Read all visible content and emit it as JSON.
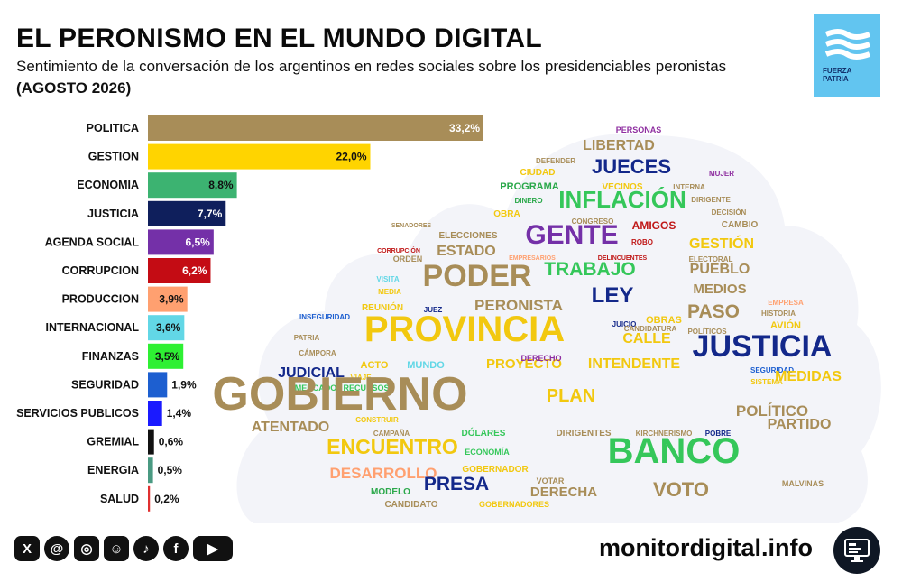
{
  "header": {
    "title": "EL PERONISMO EN EL MUNDO DIGITAL",
    "subtitle": "Sentimiento de la conversación de los argentinos en redes sociales sobre los presidenciables peronistas",
    "period": "(AGOSTO 2026)"
  },
  "logo": {
    "line1": "FUERZA",
    "line2": "PATRIA",
    "color": "#62c5f0"
  },
  "chart_data": {
    "type": "bar",
    "orientation": "horizontal",
    "categories": [
      "POLITICA",
      "GESTION",
      "ECONOMIA",
      "JUSTICIA",
      "AGENDA SOCIAL",
      "CORRUPCION",
      "PRODUCCION",
      "INTERNACIONAL",
      "FINANZAS",
      "SEGURIDAD",
      "SERVICIOS PUBLICOS",
      "GREMIAL",
      "ENERGIA",
      "SALUD"
    ],
    "values": [
      33.2,
      22.0,
      8.8,
      7.7,
      6.5,
      6.2,
      3.9,
      3.6,
      3.5,
      1.9,
      1.4,
      0.6,
      0.5,
      0.2
    ],
    "labels": [
      "33,2%",
      "22,0%",
      "8,8%",
      "7,7%",
      "6,5%",
      "6,2%",
      "3,9%",
      "3,6%",
      "3,5%",
      "1,9%",
      "1,4%",
      "0,6%",
      "0,5%",
      "0,2%"
    ],
    "colors": [
      "#a88d58",
      "#ffd400",
      "#3cb371",
      "#0f1f5c",
      "#7430a8",
      "#c40c14",
      "#ffa070",
      "#62d7e6",
      "#2ef033",
      "#1d5fd0",
      "#1a1aff",
      "#111111",
      "#4a9a82",
      "#e03030"
    ],
    "xlim": [
      0,
      33.2
    ],
    "grid": false,
    "legend": "none"
  },
  "wordcloud": {
    "background": "#f3f4f9",
    "words": [
      {
        "text": "PERSONAS",
        "color": "#8e2ea0",
        "weight": 1
      },
      {
        "text": "LIBERTAD",
        "color": "#a88d58",
        "weight": 3
      },
      {
        "text": "DEFENDER",
        "color": "#a88d58",
        "weight": 0
      },
      {
        "text": "JUECES",
        "color": "#13288a",
        "weight": 4
      },
      {
        "text": "CIUDAD",
        "color": "#f2c80f",
        "weight": 1
      },
      {
        "text": "MUJER",
        "color": "#8e2ea0",
        "weight": 0
      },
      {
        "text": "PROGRAMA",
        "color": "#2aa84a",
        "weight": 1
      },
      {
        "text": "VECINOS",
        "color": "#f2c80f",
        "weight": 1
      },
      {
        "text": "INTERNA",
        "color": "#a88d58",
        "weight": 0
      },
      {
        "text": "DINERO",
        "color": "#2aa84a",
        "weight": 0
      },
      {
        "text": "INFLACIÓN",
        "color": "#35c75a",
        "weight": 5
      },
      {
        "text": "DIRIGENTE",
        "color": "#a88d58",
        "weight": 0
      },
      {
        "text": "OBRA",
        "color": "#f2c80f",
        "weight": 1
      },
      {
        "text": "DECISIÓN",
        "color": "#a88d58",
        "weight": 0
      },
      {
        "text": "CONGRESO",
        "color": "#a88d58",
        "weight": 0
      },
      {
        "text": "SENADORES",
        "color": "#a88d58",
        "weight": 0
      },
      {
        "text": "AMIGOS",
        "color": "#c01818",
        "weight": 1
      },
      {
        "text": "CAMBIO",
        "color": "#a88d58",
        "weight": 1
      },
      {
        "text": "GENTE",
        "color": "#7430a8",
        "weight": 6
      },
      {
        "text": "ELECCIONES",
        "color": "#a88d58",
        "weight": 1
      },
      {
        "text": "ROBO",
        "color": "#c01818",
        "weight": 0
      },
      {
        "text": "GESTIÓN",
        "color": "#f2c80f",
        "weight": 3
      },
      {
        "text": "CORRUPCIÓN",
        "color": "#c01818",
        "weight": 0
      },
      {
        "text": "ESTADO",
        "color": "#a88d58",
        "weight": 3
      },
      {
        "text": "EMPRESARIOS",
        "color": "#ffa070",
        "weight": 0
      },
      {
        "text": "DELINCUENTES",
        "color": "#c01818",
        "weight": 0
      },
      {
        "text": "ELECTORAL",
        "color": "#a88d58",
        "weight": 0
      },
      {
        "text": "ORDEN",
        "color": "#a88d58",
        "weight": 1
      },
      {
        "text": "TRABAJO",
        "color": "#35c75a",
        "weight": 4
      },
      {
        "text": "PUEBLO",
        "color": "#a88d58",
        "weight": 3
      },
      {
        "text": "VISITA",
        "color": "#62d7e6",
        "weight": 0
      },
      {
        "text": "PODER",
        "color": "#a88d58",
        "weight": 6
      },
      {
        "text": "MEDIA",
        "color": "#f2c80f",
        "weight": 0
      },
      {
        "text": "LEY",
        "color": "#13288a",
        "weight": 4
      },
      {
        "text": "MEDIOS",
        "color": "#a88d58",
        "weight": 2
      },
      {
        "text": "EMPRESA",
        "color": "#ffa070",
        "weight": 0
      },
      {
        "text": "REUNIÓN",
        "color": "#f2c80f",
        "weight": 1
      },
      {
        "text": "JUEZ",
        "color": "#13288a",
        "weight": 0
      },
      {
        "text": "PERONISTA",
        "color": "#a88d58",
        "weight": 3
      },
      {
        "text": "PASO",
        "color": "#a88d58",
        "weight": 4
      },
      {
        "text": "HISTORIA",
        "color": "#a88d58",
        "weight": 0
      },
      {
        "text": "INSEGURIDAD",
        "color": "#1d5fd0",
        "weight": 0
      },
      {
        "text": "JUICIO",
        "color": "#13288a",
        "weight": 0
      },
      {
        "text": "OBRAS",
        "color": "#f2c80f",
        "weight": 1
      },
      {
        "text": "AVIÓN",
        "color": "#f2c80f",
        "weight": 1
      },
      {
        "text": "PROVINCIA",
        "color": "#f2c80f",
        "weight": 8
      },
      {
        "text": "POLÍTICOS",
        "color": "#a88d58",
        "weight": 0
      },
      {
        "text": "PATRIA",
        "color": "#a88d58",
        "weight": 0
      },
      {
        "text": "CALLE",
        "color": "#f2c80f",
        "weight": 3
      },
      {
        "text": "CANDIDATURA",
        "color": "#a88d58",
        "weight": 0
      },
      {
        "text": "JUSTICIA",
        "color": "#13288a",
        "weight": 7
      },
      {
        "text": "CÁMPORA",
        "color": "#a88d58",
        "weight": 0
      },
      {
        "text": "PROYECTO",
        "color": "#f2c80f",
        "weight": 2
      },
      {
        "text": "INTENDENTE",
        "color": "#f2c80f",
        "weight": 3
      },
      {
        "text": "SEGURIDAD",
        "color": "#1d5fd0",
        "weight": 0
      },
      {
        "text": "JUDICIAL",
        "color": "#13288a",
        "weight": 3
      },
      {
        "text": "ACTO",
        "color": "#f2c80f",
        "weight": 3
      },
      {
        "text": "MUNDO",
        "color": "#62d7e6",
        "weight": 1
      },
      {
        "text": "VIAJE",
        "color": "#f2c80f",
        "weight": 1
      },
      {
        "text": "SISTEMA",
        "color": "#f2c80f",
        "weight": 0
      },
      {
        "text": "MERCADO",
        "color": "#35c75a",
        "weight": 0
      },
      {
        "text": "RECURSOS",
        "color": "#35c75a",
        "weight": 0
      },
      {
        "text": "MEDIDAS",
        "color": "#f2c80f",
        "weight": 0
      },
      {
        "text": "PLAN",
        "color": "#f2c80f",
        "weight": 4
      },
      {
        "text": "GOBIERNO",
        "color": "#a88d58",
        "weight": 9
      },
      {
        "text": "POLÍTICO",
        "color": "#a88d58",
        "weight": 3
      },
      {
        "text": "CONSTRUIR",
        "color": "#f2c80f",
        "weight": 0
      },
      {
        "text": "ATENTADO",
        "color": "#a88d58",
        "weight": 0
      },
      {
        "text": "PARTIDO",
        "color": "#a88d58",
        "weight": 3
      },
      {
        "text": "CAMPAÑA",
        "color": "#a88d58",
        "weight": 3
      },
      {
        "text": "DÓLARES",
        "color": "#35c75a",
        "weight": 0
      },
      {
        "text": "DIRIGENTES",
        "color": "#a88d58",
        "weight": 1
      },
      {
        "text": "KIRCHNERISMO",
        "color": "#a88d58",
        "weight": 1
      },
      {
        "text": "POBRE",
        "color": "#13288a",
        "weight": 0
      },
      {
        "text": "ENCUENTRO",
        "color": "#f2c80f",
        "weight": 0
      },
      {
        "text": "ECONOMÍA",
        "color": "#35c75a",
        "weight": 5
      },
      {
        "text": "BANCO",
        "color": "#35c75a",
        "weight": 0
      },
      {
        "text": "GOBERNADOR",
        "color": "#f2c80f",
        "weight": 7
      },
      {
        "text": "DESARROLLO",
        "color": "#ffa070",
        "weight": 1
      },
      {
        "text": "PRESA",
        "color": "#13288a",
        "weight": 3
      },
      {
        "text": "VOTAR",
        "color": "#a88d58",
        "weight": 4
      },
      {
        "text": "MALVINAS",
        "color": "#a88d58",
        "weight": 0
      },
      {
        "text": "MODELO",
        "color": "#2aa84a",
        "weight": 0
      },
      {
        "text": "DERECHA",
        "color": "#a88d58",
        "weight": 0
      },
      {
        "text": "VOTO",
        "color": "#a88d58",
        "weight": 2
      },
      {
        "text": "CANDIDATO",
        "color": "#a88d58",
        "weight": 5
      },
      {
        "text": "GOBERNADORES",
        "color": "#f2c80f",
        "weight": 1
      },
      {
        "text": "DERECHO",
        "color": "#8e2ea0",
        "weight": 1
      }
    ]
  },
  "footer": {
    "social_icons": [
      "x-icon",
      "threads-icon",
      "instagram-icon",
      "reddit-icon",
      "tiktok-icon",
      "facebook-icon",
      "youtube-icon"
    ],
    "site": "monitordigital.info",
    "monitor_icon": "monitor-icon"
  }
}
